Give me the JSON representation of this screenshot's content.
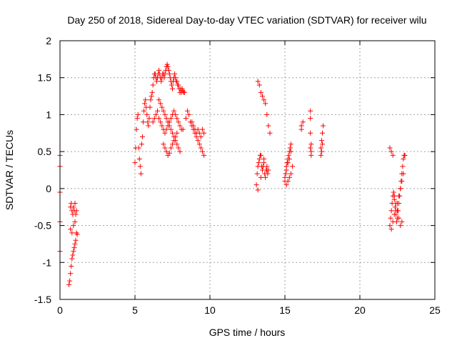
{
  "chart_data": {
    "type": "scatter",
    "title": "Day 250 of 2018, Sidereal Day-to-day VTEC variation (SDTVAR) for receiver wilu",
    "xlabel": "GPS time / hours",
    "ylabel": "SDTVAR / TECUs",
    "xlim": [
      0,
      25
    ],
    "ylim": [
      -1.5,
      2
    ],
    "xticks": [
      0,
      5,
      10,
      15,
      20,
      25
    ],
    "xtick_labels": [
      "0",
      "5",
      "10",
      "15",
      "20",
      "25"
    ],
    "yticks": [
      -1.5,
      -1,
      -0.5,
      0,
      0.5,
      1,
      1.5,
      2
    ],
    "ytick_labels": [
      "-1.5",
      "-1",
      "-0.5",
      "0",
      "0.5",
      "1",
      "1.5",
      "2"
    ],
    "grid": true,
    "marker": "+",
    "color": "#ff0000",
    "series": [
      {
        "name": "SDTVAR",
        "x": [
          0.0,
          0.0,
          0.0,
          0.0,
          0.0,
          0.6,
          0.65,
          0.7,
          0.75,
          0.8,
          0.85,
          0.9,
          0.95,
          1.0,
          1.05,
          0.7,
          0.75,
          0.8,
          0.85,
          0.9,
          0.95,
          1.0,
          1.05,
          1.1,
          0.7,
          0.8,
          0.9,
          1.0,
          1.1,
          1.15,
          5.0,
          5.05,
          5.1,
          5.15,
          5.2,
          5.25,
          5.3,
          5.35,
          5.4,
          5.45,
          5.5,
          5.55,
          5.6,
          5.65,
          5.7,
          5.75,
          5.8,
          5.85,
          5.9,
          5.95,
          6.0,
          6.05,
          6.1,
          6.15,
          6.2,
          6.25,
          6.3,
          6.35,
          6.4,
          6.45,
          6.5,
          6.55,
          6.6,
          6.65,
          6.7,
          6.75,
          6.8,
          6.85,
          6.9,
          6.95,
          7.0,
          7.05,
          7.1,
          7.15,
          7.2,
          7.25,
          7.3,
          7.35,
          7.4,
          7.45,
          7.5,
          7.55,
          7.6,
          7.65,
          7.7,
          7.75,
          7.8,
          7.85,
          7.9,
          7.95,
          8.0,
          8.05,
          8.1,
          8.15,
          8.2,
          8.25,
          8.3,
          6.6,
          6.7,
          6.8,
          6.9,
          7.0,
          7.1,
          7.2,
          7.3,
          7.4,
          7.5,
          7.6,
          7.7,
          7.8,
          7.9,
          8.0,
          6.2,
          6.3,
          6.4,
          6.5,
          6.6,
          6.7,
          6.8,
          6.9,
          7.0,
          7.1,
          7.2,
          7.3,
          7.4,
          7.5,
          7.6,
          7.7,
          7.8,
          7.9,
          8.0,
          8.1,
          8.2,
          6.9,
          7.0,
          7.1,
          7.2,
          7.3,
          7.4,
          7.5,
          7.6,
          7.7,
          7.8,
          8.4,
          8.5,
          8.6,
          8.7,
          8.8,
          8.9,
          9.0,
          9.1,
          9.2,
          9.3,
          9.4,
          9.5,
          9.6,
          8.8,
          8.9,
          9.0,
          9.1,
          9.2,
          9.3,
          9.4,
          9.5,
          9.6,
          13.1,
          13.15,
          13.2,
          13.25,
          13.3,
          13.35,
          13.4,
          13.45,
          13.5,
          13.55,
          13.6,
          13.65,
          13.7,
          13.75,
          13.8,
          13.85,
          13.9,
          13.2,
          13.3,
          13.4,
          13.5,
          13.6,
          13.7,
          13.8,
          13.9,
          14.0,
          13.2,
          13.4,
          13.6,
          13.8,
          15.0,
          15.05,
          15.1,
          15.15,
          15.2,
          15.25,
          15.3,
          15.35,
          15.4,
          15.0,
          15.1,
          15.2,
          15.3,
          15.4,
          15.1,
          15.2,
          15.3,
          15.4,
          15.5,
          16.1,
          16.2,
          16.1,
          16.7,
          16.7,
          16.7,
          16.7,
          16.75,
          16.75,
          16.75,
          17.4,
          17.45,
          17.5,
          17.55,
          17.4,
          17.45,
          17.5,
          22.0,
          22.05,
          22.1,
          22.15,
          22.2,
          22.25,
          22.3,
          22.35,
          22.4,
          22.45,
          22.5,
          22.55,
          22.6,
          22.65,
          22.7,
          22.75,
          22.8,
          22.85,
          22.9,
          22.95,
          23.0,
          22.1,
          22.2,
          22.3,
          22.4,
          22.5,
          22.6,
          22.7,
          22.8,
          22.9,
          22.0,
          22.1,
          22.2,
          22.3,
          22.4,
          22.5,
          22.6,
          22.7,
          22.8
        ],
        "y": [
          0.45,
          0.3,
          -0.05,
          -0.45,
          -0.85,
          -1.3,
          -1.25,
          -1.15,
          -1.05,
          -0.95,
          -0.9,
          -0.85,
          -0.8,
          -0.75,
          -0.7,
          -0.25,
          -0.2,
          -0.3,
          -0.35,
          -0.25,
          -0.3,
          -0.2,
          -0.35,
          -0.3,
          -0.55,
          -0.6,
          -0.5,
          -0.45,
          -0.6,
          -0.62,
          0.35,
          0.55,
          0.8,
          0.95,
          1.0,
          0.55,
          0.4,
          0.3,
          0.2,
          0.6,
          0.7,
          0.9,
          1.05,
          1.15,
          1.2,
          1.1,
          1.0,
          0.9,
          0.85,
          0.95,
          1.1,
          1.2,
          1.25,
          1.3,
          1.4,
          1.5,
          1.55,
          1.55,
          1.5,
          1.45,
          1.5,
          1.55,
          1.6,
          1.55,
          1.5,
          1.45,
          1.5,
          1.55,
          1.55,
          1.5,
          1.55,
          1.6,
          1.65,
          1.68,
          1.65,
          1.6,
          1.55,
          1.5,
          1.45,
          1.4,
          1.35,
          1.45,
          1.5,
          1.55,
          1.5,
          1.45,
          1.45,
          1.4,
          1.4,
          1.35,
          1.3,
          1.35,
          1.3,
          1.35,
          1.32,
          1.3,
          1.3,
          1.2,
          1.15,
          1.1,
          1.05,
          1.0,
          0.95,
          0.9,
          0.85,
          0.8,
          0.75,
          0.7,
          0.65,
          0.6,
          0.55,
          0.5,
          0.9,
          0.95,
          1.0,
          1.05,
          0.95,
          0.9,
          0.85,
          0.8,
          0.75,
          0.8,
          0.85,
          0.9,
          0.95,
          1.0,
          1.05,
          1.0,
          0.95,
          0.9,
          0.85,
          0.8,
          0.8,
          0.6,
          0.55,
          0.5,
          0.45,
          0.48,
          0.55,
          0.6,
          0.65,
          0.7,
          0.75,
          0.95,
          1.05,
          1.0,
          0.9,
          0.85,
          0.8,
          0.75,
          0.7,
          0.65,
          0.6,
          0.55,
          0.5,
          0.45,
          0.9,
          0.85,
          0.8,
          0.75,
          0.8,
          0.75,
          0.7,
          0.8,
          0.75,
          0.05,
          0.2,
          0.3,
          0.35,
          0.4,
          0.45,
          0.45,
          0.3,
          0.25,
          0.3,
          0.35,
          0.2,
          0.15,
          0.25,
          0.3,
          0.2,
          0.25,
          1.45,
          1.4,
          1.3,
          1.25,
          1.2,
          1.15,
          1.0,
          0.85,
          0.75,
          -0.02,
          0.15,
          0.4,
          0.25,
          0.1,
          0.2,
          0.3,
          0.35,
          0.4,
          0.45,
          0.5,
          0.55,
          0.6,
          0.15,
          0.25,
          0.35,
          0.4,
          0.5,
          0.05,
          0.1,
          0.15,
          0.2,
          0.3,
          0.85,
          0.9,
          0.8,
          0.55,
          0.75,
          0.95,
          1.05,
          0.5,
          0.6,
          0.45,
          0.55,
          0.65,
          0.75,
          0.85,
          0.45,
          0.5,
          0.6,
          -0.5,
          -0.4,
          -0.3,
          -0.2,
          -0.1,
          -0.05,
          -0.15,
          -0.25,
          -0.35,
          -0.45,
          -0.4,
          -0.3,
          -0.2,
          -0.1,
          0.0,
          0.1,
          0.2,
          0.3,
          0.4,
          0.45,
          0.45,
          -0.55,
          -0.45,
          -0.35,
          -0.3,
          -0.2,
          -0.1,
          0.0,
          0.1,
          0.2,
          0.55,
          0.5,
          0.45,
          -0.1,
          -0.2,
          -0.3,
          -0.4,
          -0.5,
          -0.45
        ]
      }
    ]
  }
}
